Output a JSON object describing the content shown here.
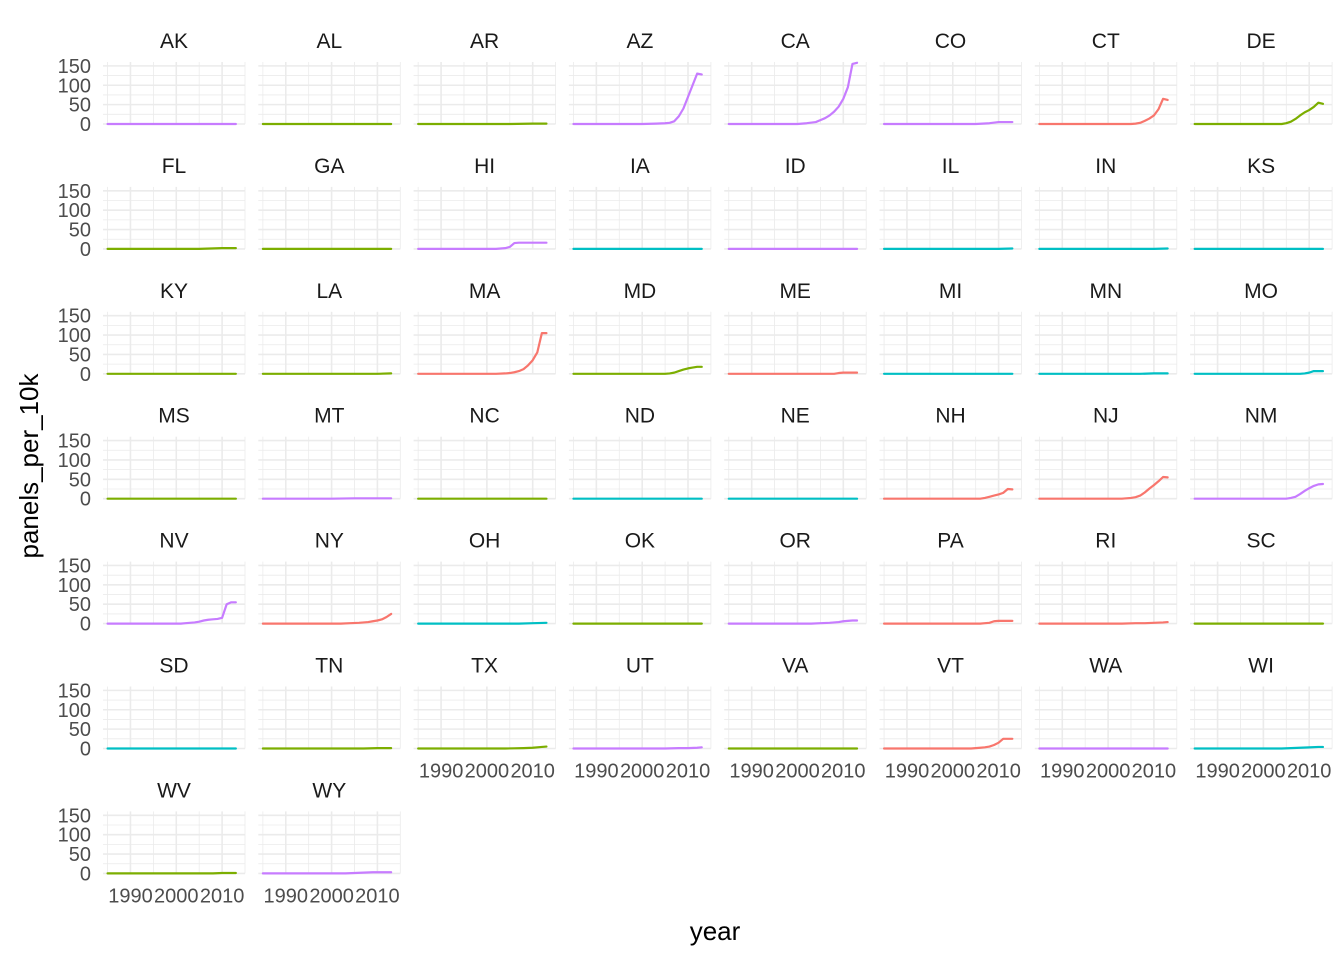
{
  "chart_data": {
    "type": "line",
    "layout": "facet-wrap",
    "ncol": 8,
    "xlabel": "year",
    "ylabel": "panels_per_10k",
    "ylim": [
      0,
      160
    ],
    "y_ticks": [
      0,
      50,
      100,
      150
    ],
    "xlim": [
      1984,
      2015
    ],
    "x_ticks": [
      1990,
      2000,
      2010
    ],
    "x_tick_labels": [
      "1990",
      "2000",
      "2010"
    ],
    "grid": true,
    "legend": "none",
    "colors": {
      "red": "#F8766D",
      "green": "#7CAE00",
      "teal": "#00BFC4",
      "purple": "#C77CFF",
      "grid": "#ebebeb"
    },
    "panels": [
      {
        "state": "AK",
        "color": "purple",
        "x": [
          1985,
          2013
        ],
        "y": [
          0,
          0
        ]
      },
      {
        "state": "AL",
        "color": "green",
        "x": [
          1985,
          2013
        ],
        "y": [
          0,
          0
        ]
      },
      {
        "state": "AR",
        "color": "green",
        "x": [
          1985,
          2005,
          2010,
          2013
        ],
        "y": [
          0,
          0,
          1,
          1
        ]
      },
      {
        "state": "AZ",
        "color": "purple",
        "x": [
          1985,
          2000,
          2003,
          2005,
          2006,
          2007,
          2008,
          2009,
          2010,
          2011,
          2012,
          2013
        ],
        "y": [
          0,
          0,
          1,
          2,
          3,
          7,
          20,
          40,
          70,
          100,
          130,
          128
        ]
      },
      {
        "state": "CA",
        "color": "purple",
        "x": [
          1985,
          2000,
          2002,
          2004,
          2005,
          2006,
          2007,
          2008,
          2009,
          2010,
          2011,
          2012,
          2013
        ],
        "y": [
          0,
          0,
          2,
          5,
          10,
          15,
          22,
          32,
          45,
          65,
          95,
          155,
          158
        ]
      },
      {
        "state": "CO",
        "color": "purple",
        "x": [
          1985,
          2005,
          2008,
          2010,
          2013
        ],
        "y": [
          0,
          0,
          2,
          5,
          5
        ]
      },
      {
        "state": "CT",
        "color": "red",
        "x": [
          1985,
          2005,
          2006,
          2007,
          2008,
          2009,
          2010,
          2011,
          2012,
          2013
        ],
        "y": [
          0,
          0,
          1,
          3,
          8,
          14,
          22,
          38,
          65,
          62
        ]
      },
      {
        "state": "DE",
        "color": "green",
        "x": [
          1985,
          2004,
          2005,
          2006,
          2007,
          2008,
          2009,
          2010,
          2011,
          2012,
          2013
        ],
        "y": [
          0,
          0,
          2,
          6,
          13,
          22,
          30,
          36,
          44,
          55,
          52
        ]
      },
      {
        "state": "FL",
        "color": "green",
        "x": [
          1985,
          2005,
          2010,
          2013
        ],
        "y": [
          0,
          0,
          2,
          2
        ]
      },
      {
        "state": "GA",
        "color": "green",
        "x": [
          1985,
          2013
        ],
        "y": [
          0,
          0
        ]
      },
      {
        "state": "HI",
        "color": "purple",
        "x": [
          1985,
          2002,
          2003,
          2004,
          2005,
          2006,
          2007,
          2008,
          2013
        ],
        "y": [
          0,
          0,
          1,
          2,
          5,
          15,
          16,
          16,
          16
        ]
      },
      {
        "state": "IA",
        "color": "teal",
        "x": [
          1985,
          2013
        ],
        "y": [
          0,
          0
        ]
      },
      {
        "state": "ID",
        "color": "purple",
        "x": [
          1985,
          2013
        ],
        "y": [
          0,
          0
        ]
      },
      {
        "state": "IL",
        "color": "teal",
        "x": [
          1985,
          2010,
          2013
        ],
        "y": [
          0,
          0,
          1
        ]
      },
      {
        "state": "IN",
        "color": "teal",
        "x": [
          1985,
          2010,
          2013
        ],
        "y": [
          0,
          0,
          1
        ]
      },
      {
        "state": "KS",
        "color": "teal",
        "x": [
          1985,
          2013
        ],
        "y": [
          0,
          0
        ]
      },
      {
        "state": "KY",
        "color": "green",
        "x": [
          1985,
          2013
        ],
        "y": [
          0,
          0
        ]
      },
      {
        "state": "LA",
        "color": "green",
        "x": [
          1985,
          2010,
          2013
        ],
        "y": [
          0,
          0,
          1
        ]
      },
      {
        "state": "MA",
        "color": "red",
        "x": [
          1985,
          2002,
          2004,
          2005,
          2006,
          2007,
          2008,
          2009,
          2010,
          2011,
          2012,
          2013
        ],
        "y": [
          0,
          0,
          1,
          2,
          4,
          7,
          12,
          22,
          35,
          55,
          105,
          105
        ]
      },
      {
        "state": "MD",
        "color": "green",
        "x": [
          1985,
          2005,
          2006,
          2007,
          2008,
          2009,
          2010,
          2011,
          2012,
          2013
        ],
        "y": [
          0,
          0,
          1,
          3,
          7,
          11,
          14,
          16,
          18,
          18
        ]
      },
      {
        "state": "ME",
        "color": "red",
        "x": [
          1985,
          2008,
          2009,
          2010,
          2013
        ],
        "y": [
          0,
          0,
          2,
          3,
          3
        ]
      },
      {
        "state": "MI",
        "color": "teal",
        "x": [
          1985,
          2013
        ],
        "y": [
          0,
          0
        ]
      },
      {
        "state": "MN",
        "color": "teal",
        "x": [
          1985,
          2007,
          2010,
          2013
        ],
        "y": [
          0,
          0,
          1,
          1
        ]
      },
      {
        "state": "MO",
        "color": "teal",
        "x": [
          1985,
          2008,
          2009,
          2010,
          2011,
          2013
        ],
        "y": [
          0,
          0,
          1,
          3,
          7,
          7
        ]
      },
      {
        "state": "MS",
        "color": "green",
        "x": [
          1985,
          2013
        ],
        "y": [
          0,
          0
        ]
      },
      {
        "state": "MT",
        "color": "purple",
        "x": [
          1985,
          2000,
          2005,
          2013
        ],
        "y": [
          0,
          0,
          1,
          1
        ]
      },
      {
        "state": "NC",
        "color": "green",
        "x": [
          1985,
          2013
        ],
        "y": [
          0,
          0
        ]
      },
      {
        "state": "ND",
        "color": "teal",
        "x": [
          1985,
          2013
        ],
        "y": [
          0,
          0
        ]
      },
      {
        "state": "NE",
        "color": "teal",
        "x": [
          1985,
          2013
        ],
        "y": [
          0,
          0
        ]
      },
      {
        "state": "NH",
        "color": "red",
        "x": [
          1985,
          2006,
          2007,
          2008,
          2009,
          2010,
          2011,
          2012,
          2013
        ],
        "y": [
          0,
          0,
          2,
          5,
          8,
          11,
          15,
          25,
          24
        ]
      },
      {
        "state": "NJ",
        "color": "red",
        "x": [
          1985,
          2003,
          2004,
          2005,
          2006,
          2007,
          2008,
          2009,
          2010,
          2011,
          2012,
          2013
        ],
        "y": [
          0,
          0,
          1,
          2,
          4,
          8,
          16,
          26,
          35,
          45,
          56,
          55
        ]
      },
      {
        "state": "NM",
        "color": "purple",
        "x": [
          1985,
          2005,
          2006,
          2007,
          2008,
          2009,
          2010,
          2011,
          2012,
          2013
        ],
        "y": [
          0,
          0,
          2,
          5,
          12,
          20,
          27,
          33,
          37,
          38
        ]
      },
      {
        "state": "NV",
        "color": "purple",
        "x": [
          1985,
          2001,
          2002,
          2003,
          2004,
          2005,
          2006,
          2007,
          2008,
          2009,
          2010,
          2011,
          2012,
          2013
        ],
        "y": [
          0,
          0,
          1,
          2,
          3,
          5,
          8,
          10,
          11,
          12,
          15,
          50,
          55,
          55
        ]
      },
      {
        "state": "NY",
        "color": "red",
        "x": [
          1985,
          2002,
          2004,
          2006,
          2008,
          2009,
          2010,
          2011,
          2012,
          2013
        ],
        "y": [
          0,
          0,
          1,
          2,
          4,
          6,
          8,
          11,
          17,
          25
        ]
      },
      {
        "state": "OH",
        "color": "teal",
        "x": [
          1985,
          2007,
          2010,
          2013
        ],
        "y": [
          0,
          0,
          1,
          2
        ]
      },
      {
        "state": "OK",
        "color": "green",
        "x": [
          1985,
          2013
        ],
        "y": [
          0,
          0
        ]
      },
      {
        "state": "OR",
        "color": "purple",
        "x": [
          1985,
          2003,
          2005,
          2007,
          2008,
          2009,
          2010,
          2011,
          2012,
          2013
        ],
        "y": [
          0,
          0,
          1,
          2,
          3,
          4,
          6,
          7,
          8,
          8
        ]
      },
      {
        "state": "PA",
        "color": "red",
        "x": [
          1985,
          2006,
          2007,
          2008,
          2009,
          2010,
          2013
        ],
        "y": [
          0,
          0,
          1,
          2,
          6,
          7,
          7
        ]
      },
      {
        "state": "RI",
        "color": "red",
        "x": [
          1985,
          2003,
          2006,
          2008,
          2010,
          2012,
          2013
        ],
        "y": [
          0,
          0,
          1,
          1,
          2,
          3,
          4
        ]
      },
      {
        "state": "SC",
        "color": "green",
        "x": [
          1985,
          2013
        ],
        "y": [
          0,
          0
        ]
      },
      {
        "state": "SD",
        "color": "teal",
        "x": [
          1985,
          2013
        ],
        "y": [
          0,
          0
        ]
      },
      {
        "state": "TN",
        "color": "green",
        "x": [
          1985,
          2007,
          2010,
          2013
        ],
        "y": [
          0,
          0,
          1,
          1
        ]
      },
      {
        "state": "TX",
        "color": "green",
        "x": [
          1985,
          2004,
          2006,
          2008,
          2010,
          2012,
          2013
        ],
        "y": [
          0,
          0,
          0.5,
          1,
          2,
          4,
          5
        ]
      },
      {
        "state": "UT",
        "color": "purple",
        "x": [
          1985,
          2005,
          2008,
          2010,
          2012,
          2013
        ],
        "y": [
          0,
          0,
          1,
          1,
          2,
          3
        ]
      },
      {
        "state": "VA",
        "color": "green",
        "x": [
          1985,
          2013
        ],
        "y": [
          0,
          0
        ]
      },
      {
        "state": "VT",
        "color": "red",
        "x": [
          1985,
          2004,
          2005,
          2006,
          2007,
          2008,
          2009,
          2010,
          2011,
          2012,
          2013
        ],
        "y": [
          0,
          0,
          1,
          2,
          3,
          5,
          9,
          15,
          25,
          25,
          25
        ]
      },
      {
        "state": "WA",
        "color": "purple",
        "x": [
          1985,
          2013
        ],
        "y": [
          0,
          0
        ]
      },
      {
        "state": "WI",
        "color": "teal",
        "x": [
          1985,
          2004,
          2006,
          2008,
          2010,
          2012,
          2013
        ],
        "y": [
          0,
          0,
          1,
          2,
          3,
          4,
          4
        ]
      },
      {
        "state": "WV",
        "color": "green",
        "x": [
          1985,
          2008,
          2010,
          2013
        ],
        "y": [
          0,
          0,
          1,
          1
        ]
      },
      {
        "state": "WY",
        "color": "purple",
        "x": [
          1985,
          2003,
          2005,
          2007,
          2009,
          2013
        ],
        "y": [
          0,
          0,
          1,
          2,
          3,
          3
        ]
      }
    ]
  }
}
